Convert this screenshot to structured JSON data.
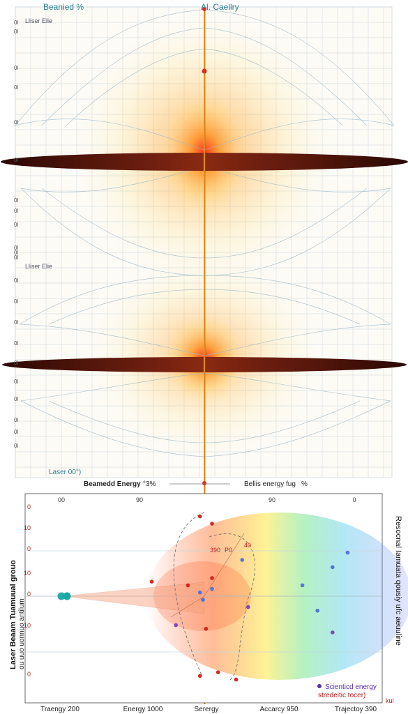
{
  "top": {
    "title_left": "Beanied %",
    "title_right": "Al. Caellry",
    "panel1_label": "Lliser Elie",
    "panel2_label": "Lliser Elie",
    "laser_label": "Laser 00°)",
    "left_ticks_panel1": [
      "0l",
      "0l",
      "0l",
      "0l",
      "0l",
      "0l",
      "0l",
      "0l",
      "0l",
      "0l",
      "0l",
      "0l"
    ],
    "left_ticks_panel2": [
      "0l",
      "0l",
      "0l",
      "0l",
      "0l",
      "0l",
      "0l",
      "0l",
      "0l",
      "0l"
    ],
    "legend_row": {
      "left": "Beamedd Energy",
      "left_value": "°3%",
      "right": "Bellis energy fug",
      "right_value": "%"
    }
  },
  "bottom": {
    "top_ticks": [
      "00",
      "90",
      "90",
      "0"
    ],
    "annotation_main": "390",
    "annotation_secondary": "P0",
    "annotation_top": "40",
    "left_axis_label": "Laser Beaam Tuamuual grouo",
    "left_axis_label_2": "ou uuo uonnuo antilum",
    "right_axis_label": "Resocnal Iamuata qousiy ufc aeuuline",
    "left_ticks": [
      "0",
      "10",
      "0",
      "10",
      "0",
      "10",
      "0"
    ],
    "bottom_ticks": [
      "Traengy 200",
      "Energy 1000",
      "Serergy",
      "Accarcy 950",
      "Trajectoy 390"
    ],
    "legend_title": "Scienticd energy",
    "legend_sub": "stredeitic tocer)",
    "legend_dot_color": "#5a2ea6",
    "right_tick": "kul"
  },
  "colors": {
    "grid": "#c9d6df",
    "axis_red": "#d23b1a",
    "beam_dark": "#3a0f08",
    "title_teal": "#2a7f8a"
  },
  "chart_data": {
    "type": "scatter",
    "title": "",
    "xlabel": "",
    "ylabel": "",
    "x_categories": [
      "Traengy 200",
      "Energy 1000",
      "Serergy",
      "Accarcy 950",
      "Trajectoy 390"
    ],
    "series": [
      {
        "color": "#1aa7a7",
        "points": [
          [
            0.0,
            0.0
          ]
        ]
      },
      {
        "color": "#d21c1c",
        "points": [
          [
            0.3,
            0.4
          ],
          [
            0.42,
            0.3
          ],
          [
            0.46,
            2.2
          ],
          [
            0.48,
            -0.9
          ],
          [
            0.5,
            0.5
          ],
          [
            0.46,
            -2.2
          ],
          [
            0.5,
            2.0
          ],
          [
            0.52,
            -2.1
          ],
          [
            0.58,
            -2.3
          ]
        ]
      },
      {
        "color": "#4a6fe0",
        "points": [
          [
            0.46,
            0.1
          ],
          [
            0.47,
            -0.1
          ],
          [
            0.5,
            0.2
          ],
          [
            0.6,
            1.0
          ],
          [
            0.8,
            0.3
          ],
          [
            0.85,
            -0.4
          ],
          [
            0.9,
            0.8
          ],
          [
            0.95,
            1.2
          ]
        ]
      },
      {
        "color": "#7a3fc0",
        "points": [
          [
            0.38,
            -0.8
          ],
          [
            0.62,
            -0.3
          ],
          [
            0.9,
            -1.0
          ]
        ]
      }
    ]
  }
}
